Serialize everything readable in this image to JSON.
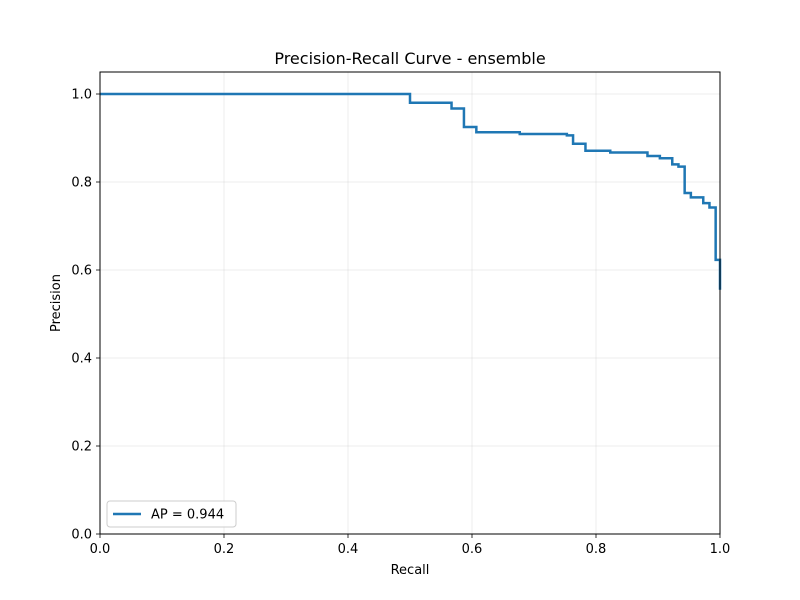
{
  "chart_data": {
    "type": "line",
    "title": "Precision-Recall Curve - ensemble",
    "xlabel": "Recall",
    "ylabel": "Precision",
    "xlim": [
      0.0,
      1.0
    ],
    "ylim": [
      0.0,
      1.05
    ],
    "xticks": [
      "0.0",
      "0.2",
      "0.4",
      "0.6",
      "0.8",
      "1.0"
    ],
    "yticks": [
      "0.0",
      "0.2",
      "0.4",
      "0.6",
      "0.8",
      "1.0"
    ],
    "grid": true,
    "legend_position": "lower-left",
    "series": [
      {
        "name": "AP = 0.944",
        "color": "#1f77b4",
        "step": "post",
        "x": [
          0.0,
          0.5,
          0.567,
          0.587,
          0.607,
          0.677,
          0.753,
          0.763,
          0.783,
          0.823,
          0.883,
          0.903,
          0.923,
          0.933,
          0.943,
          0.953,
          0.973,
          0.983,
          0.993,
          1.0
        ],
        "y": [
          1.0,
          0.98,
          0.967,
          0.925,
          0.913,
          0.909,
          0.906,
          0.887,
          0.871,
          0.867,
          0.859,
          0.854,
          0.84,
          0.835,
          0.775,
          0.765,
          0.752,
          0.742,
          0.623,
          0.555
        ]
      }
    ]
  }
}
